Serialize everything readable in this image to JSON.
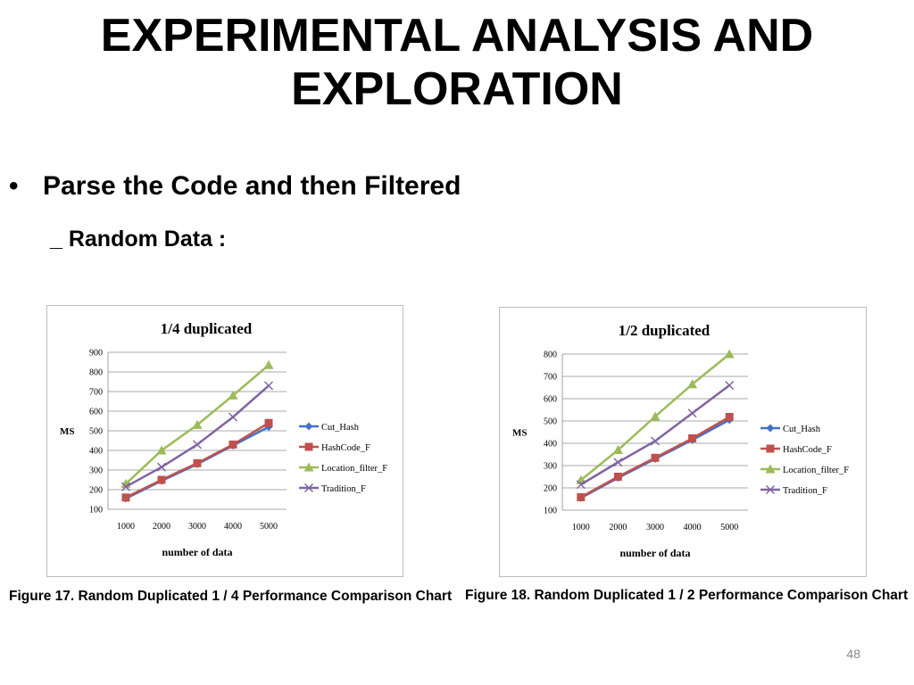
{
  "slide": {
    "title_line1": "EXPERIMENTAL ANALYSIS AND",
    "title_line2": "EXPLORATION",
    "bullet_symbol": "•",
    "bullet": "Parse the Code and then Filtered",
    "sub_bullet": "_ Random Data :",
    "page_number": "48"
  },
  "captions": [
    "Figure 17. Random Duplicated 1 / 4 Performance Comparison Chart",
    "Figure 18. Random Duplicated 1 / 2 Performance Comparison Chart"
  ],
  "chart_data": [
    {
      "type": "line",
      "title": "1/4 duplicated",
      "xlabel": "number of data",
      "ylabel": "MS",
      "x": [
        1000,
        2000,
        3000,
        4000,
        5000
      ],
      "ylim": [
        100,
        900
      ],
      "yticks": [
        100,
        200,
        300,
        400,
        500,
        600,
        700,
        800,
        900
      ],
      "grid": true,
      "legend": "right",
      "series": [
        {
          "name": "Cut_Hash",
          "color": "#4472c4",
          "marker": "diamond",
          "values": [
            155,
            245,
            330,
            425,
            520
          ]
        },
        {
          "name": "HashCode_F",
          "color": "#c0504d",
          "marker": "square",
          "values": [
            160,
            250,
            335,
            430,
            540
          ]
        },
        {
          "name": "Location_filter_F",
          "color": "#9bbb59",
          "marker": "triangle",
          "values": [
            230,
            400,
            530,
            680,
            835
          ]
        },
        {
          "name": "Tradition_F",
          "color": "#8064a2",
          "marker": "x",
          "values": [
            215,
            315,
            430,
            570,
            730
          ]
        }
      ]
    },
    {
      "type": "line",
      "title": "1/2 duplicated",
      "xlabel": "number of data",
      "ylabel": "MS",
      "x": [
        1000,
        2000,
        3000,
        4000,
        5000
      ],
      "ylim": [
        100,
        800
      ],
      "yticks": [
        100,
        200,
        300,
        400,
        500,
        600,
        700,
        800
      ],
      "grid": true,
      "legend": "right",
      "series": [
        {
          "name": "Cut_Hash",
          "color": "#4472c4",
          "marker": "diamond",
          "values": [
            155,
            245,
            330,
            415,
            505
          ]
        },
        {
          "name": "HashCode_F",
          "color": "#c0504d",
          "marker": "square",
          "values": [
            158,
            250,
            335,
            422,
            518
          ]
        },
        {
          "name": "Location_filter_F",
          "color": "#9bbb59",
          "marker": "triangle",
          "values": [
            235,
            370,
            520,
            665,
            800
          ]
        },
        {
          "name": "Tradition_F",
          "color": "#8064a2",
          "marker": "x",
          "values": [
            215,
            315,
            410,
            535,
            660
          ]
        }
      ]
    }
  ]
}
